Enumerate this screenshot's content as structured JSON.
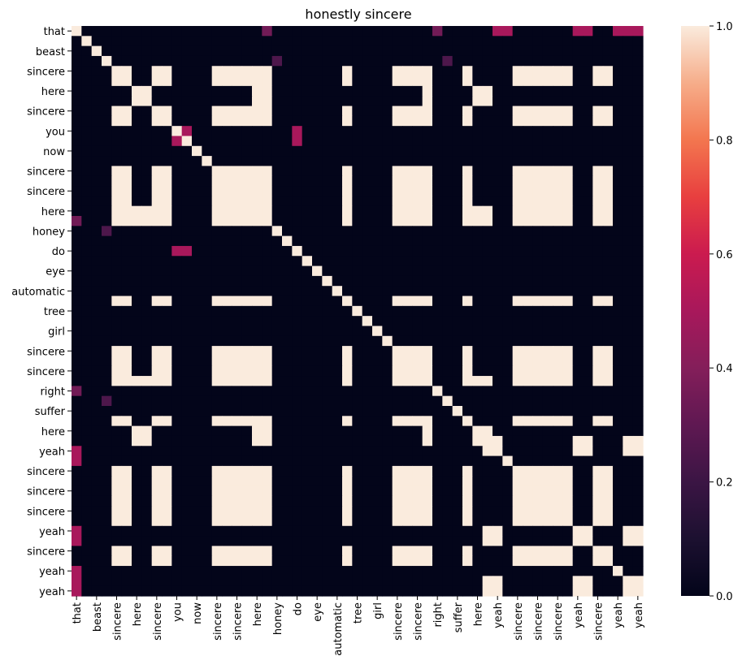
{
  "chart_data": {
    "type": "heatmap",
    "title": "honestly sincere",
    "xlabel": "",
    "ylabel": "",
    "n": 57,
    "tick_indices": [
      0,
      2,
      4,
      6,
      8,
      10,
      12,
      14,
      16,
      18,
      20,
      22,
      24,
      26,
      28,
      30,
      32,
      34,
      36,
      38,
      40,
      42,
      44,
      46,
      48,
      50,
      52,
      54,
      56
    ],
    "tick_labels": [
      "that",
      "beast",
      "sincere",
      "here",
      "sincere",
      "you",
      "now",
      "sincere",
      "sincere",
      "here",
      "honey",
      "do",
      "eye",
      "automatic",
      "tree",
      "girl",
      "sincere",
      "sincere",
      "right",
      "suffer",
      "here",
      "yeah",
      "sincere",
      "sincere",
      "sincere",
      "yeah",
      "sincere",
      "yeah",
      "yeah"
    ],
    "sincere_group": [
      4,
      5,
      8,
      9,
      14,
      15,
      16,
      17,
      18,
      19,
      27,
      32,
      33,
      34,
      35,
      39,
      44,
      45,
      46,
      47,
      48,
      49,
      52,
      53
    ],
    "sincere_shifted": [
      4,
      5,
      8,
      9,
      14,
      15,
      16,
      17,
      18,
      19,
      27,
      32,
      33,
      34,
      35,
      39,
      45,
      46,
      47,
      48,
      49,
      53
    ],
    "sincere_yeah_tail": [
      44,
      52
    ],
    "here_group": [
      6,
      7,
      18,
      19,
      35,
      40,
      41
    ],
    "yeah_group": [
      41,
      42,
      50,
      51,
      55,
      56
    ],
    "extra_cells": [
      {
        "r": 0,
        "c": 0,
        "v": 1.0
      },
      {
        "r": 0,
        "c": 19,
        "v": 0.35
      },
      {
        "r": 0,
        "c": 36,
        "v": 0.35
      },
      {
        "r": 3,
        "c": 20,
        "v": 0.25
      },
      {
        "r": 3,
        "c": 37,
        "v": 0.25
      },
      {
        "r": 10,
        "c": 10,
        "v": 1.0
      },
      {
        "r": 10,
        "c": 11,
        "v": 0.5
      },
      {
        "r": 11,
        "c": 10,
        "v": 0.5
      },
      {
        "r": 11,
        "c": 11,
        "v": 1.0
      },
      {
        "r": 10,
        "c": 22,
        "v": 0.5
      },
      {
        "r": 11,
        "c": 22,
        "v": 0.5
      },
      {
        "r": 22,
        "c": 10,
        "v": 0.5
      },
      {
        "r": 22,
        "c": 11,
        "v": 0.5
      },
      {
        "r": 19,
        "c": 0,
        "v": 0.35
      },
      {
        "r": 20,
        "c": 3,
        "v": 0.25
      },
      {
        "r": 36,
        "c": 0,
        "v": 0.35
      },
      {
        "r": 37,
        "c": 3,
        "v": 0.25
      },
      {
        "r": 42,
        "c": 0,
        "v": 0.5
      },
      {
        "r": 43,
        "c": 0,
        "v": 0.5
      },
      {
        "r": 50,
        "c": 0,
        "v": 0.5
      },
      {
        "r": 51,
        "c": 0,
        "v": 0.5
      },
      {
        "r": 54,
        "c": 0,
        "v": 0.5
      },
      {
        "r": 55,
        "c": 0,
        "v": 0.5
      },
      {
        "r": 56,
        "c": 0,
        "v": 0.5
      },
      {
        "r": 0,
        "c": 42,
        "v": 0.5
      },
      {
        "r": 0,
        "c": 43,
        "v": 0.5
      },
      {
        "r": 0,
        "c": 50,
        "v": 0.5
      },
      {
        "r": 0,
        "c": 51,
        "v": 0.5
      },
      {
        "r": 0,
        "c": 54,
        "v": 0.5
      },
      {
        "r": 0,
        "c": 55,
        "v": 0.5
      },
      {
        "r": 0,
        "c": 56,
        "v": 0.5
      }
    ],
    "colorbar": {
      "min": 0.0,
      "max": 1.0,
      "ticks": [
        "0.0",
        "0.2",
        "0.4",
        "0.6",
        "0.8",
        "1.0"
      ],
      "colormap": "rocket",
      "color_low": "#03051a",
      "color_high": "#faebdd"
    }
  }
}
